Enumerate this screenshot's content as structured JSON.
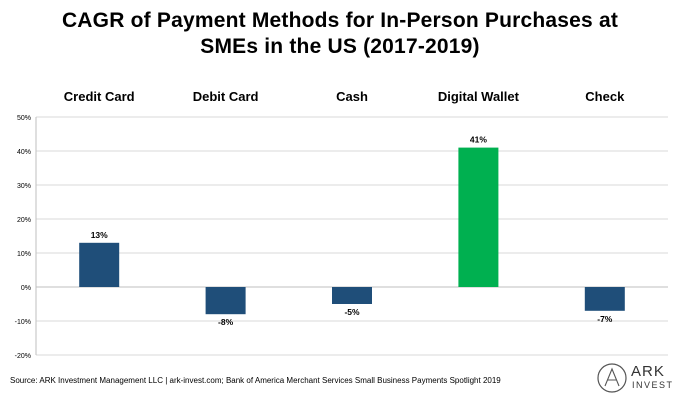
{
  "title": {
    "line1": "CAGR of Payment Methods for In-Person Purchases at",
    "line2": "SMEs in the US (2017-2019)"
  },
  "footer": {
    "source": "Source: ARK Investment Management LLC | ark-invest.com; Bank of America Merchant Services Small Business Payments Spotlight 2019"
  },
  "logo": {
    "main": "ARK",
    "sub": "INVEST",
    "icon": "ark-logo-icon"
  },
  "colors": {
    "default_bar": "#1F4E79",
    "highlight_bar": "#00B050",
    "grid": "#d9d9d9",
    "axis": "#bfbfbf"
  },
  "chart_data": {
    "type": "bar",
    "categories": [
      "Credit Card",
      "Debit Card",
      "Cash",
      "Digital Wallet",
      "Check"
    ],
    "values": [
      13,
      -8,
      -5,
      41,
      -7
    ],
    "data_labels": [
      "13%",
      "-8%",
      "-5%",
      "41%",
      "-7%"
    ],
    "highlight": [
      false,
      false,
      false,
      true,
      false
    ],
    "ylim": [
      -20,
      50
    ],
    "yticks": [
      -20,
      -10,
      0,
      10,
      20,
      30,
      40,
      50
    ],
    "ytick_labels": [
      "-20%",
      "-10%",
      "0%",
      "10%",
      "20%",
      "30%",
      "40%",
      "50%"
    ],
    "category_label_position": "top",
    "grid": true,
    "legend": "none"
  }
}
